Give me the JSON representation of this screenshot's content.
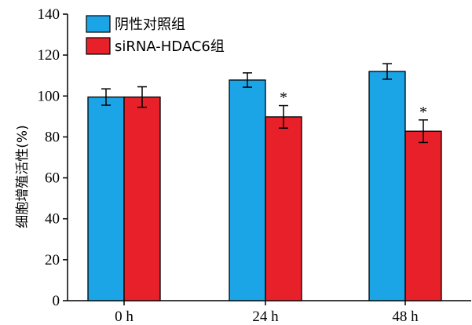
{
  "chart_data": {
    "type": "bar",
    "categories": [
      "0 h",
      "24 h",
      "48 h"
    ],
    "series": [
      {
        "name": "阴性对照组",
        "color": "#1ba4e6",
        "values": [
          99.5,
          107.8,
          112.0
        ],
        "errors": [
          4.0,
          3.5,
          3.8
        ]
      },
      {
        "name": "siRNA-HDAC6组",
        "color": "#e8202a",
        "values": [
          99.5,
          89.8,
          82.8
        ],
        "errors": [
          5.0,
          5.5,
          5.5
        ]
      }
    ],
    "annotations": [
      {
        "series": 1,
        "category": 1,
        "text": "*"
      },
      {
        "series": 1,
        "category": 2,
        "text": "*"
      }
    ],
    "title": "",
    "xlabel": "",
    "ylabel": "细胞增殖活性(%)",
    "ylim": [
      0,
      140
    ],
    "yticks": [
      0,
      20,
      40,
      60,
      80,
      100,
      120,
      140
    ],
    "grid": false,
    "legend_position": "top-left"
  }
}
